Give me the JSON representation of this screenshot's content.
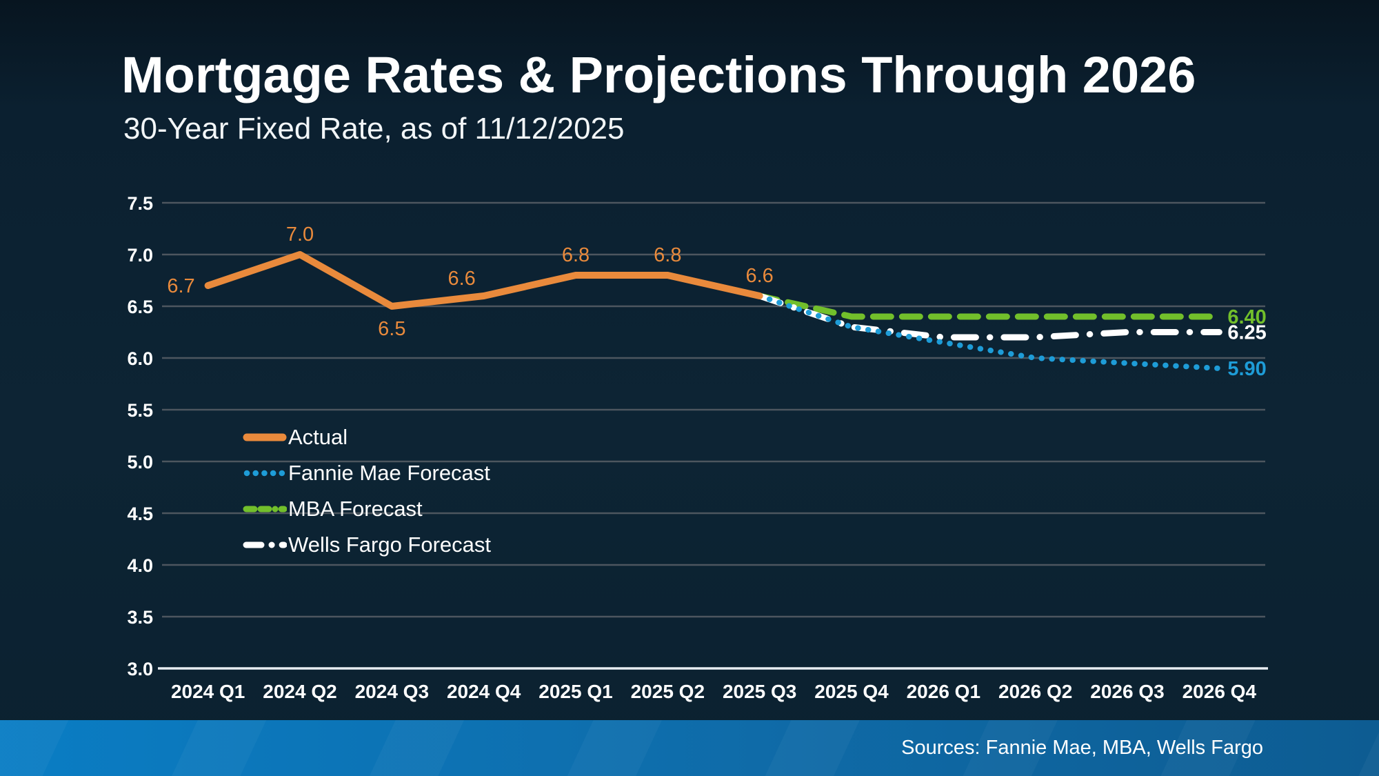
{
  "header": {
    "title": "Mortgage Rates & Projections Through 2026",
    "subtitle": "30-Year Fixed Rate, as of 11/12/2025"
  },
  "footer": {
    "sources": "Sources: Fannie Mae, MBA, Wells Fargo"
  },
  "colors": {
    "background": "#0C2334",
    "actual": "#E98A3C",
    "fannie": "#1E9CD7",
    "mba": "#72BF2B",
    "wells": "#FFFFFF",
    "gridline": "#4D565F",
    "axis": "#E8EDF1",
    "label_text": "#FFFFFF",
    "footer_bar_left": "#0A7DC4",
    "footer_bar_right": "#0D5C92"
  },
  "legend": {
    "items": [
      {
        "label": "Actual"
      },
      {
        "label": "Fannie Mae Forecast"
      },
      {
        "label": "MBA Forecast"
      },
      {
        "label": "Wells Fargo Forecast"
      }
    ]
  },
  "chart_data": {
    "type": "line",
    "title": "Mortgage Rates & Projections Through 2026",
    "subtitle": "30-Year Fixed Rate, as of 11/12/2025",
    "xlabel": "",
    "ylabel": "",
    "ylim": [
      3.0,
      7.5
    ],
    "ytick_step": 0.5,
    "grid": true,
    "legend_position": "middle-left",
    "categories": [
      "2024 Q1",
      "2024 Q2",
      "2024 Q3",
      "2024 Q4",
      "2025 Q1",
      "2025 Q2",
      "2025 Q3",
      "2025 Q4",
      "2026 Q1",
      "2026 Q2",
      "2026 Q3",
      "2026 Q4"
    ],
    "series": [
      {
        "name": "MBA Forecast",
        "color": "#72BF2B",
        "style": "dashed",
        "width": 9,
        "start_index": 6,
        "values": [
          6.6,
          6.4,
          6.4,
          6.4,
          6.4,
          6.4
        ]
      },
      {
        "name": "Wells Fargo Forecast",
        "color": "#FFFFFF",
        "style": "dashdot",
        "width": 9,
        "start_index": 6,
        "values": [
          6.6,
          6.3,
          6.2,
          6.2,
          6.25,
          6.25
        ]
      },
      {
        "name": "Fannie Mae Forecast",
        "color": "#1E9CD7",
        "style": "dotted",
        "width": 8,
        "start_index": 6,
        "values": [
          6.6,
          6.3,
          6.15,
          6.0,
          5.95,
          5.9
        ]
      },
      {
        "name": "Actual",
        "color": "#E98A3C",
        "style": "solid",
        "width": 10,
        "start_index": 0,
        "values": [
          6.7,
          7.0,
          6.5,
          6.6,
          6.8,
          6.8,
          6.6
        ]
      }
    ],
    "point_labels": [
      {
        "text": "6.7",
        "index": 0,
        "pos": "left"
      },
      {
        "text": "7.0",
        "index": 1,
        "pos": "above"
      },
      {
        "text": "6.5",
        "index": 2,
        "pos": "below"
      },
      {
        "text": "6.6",
        "index": 3,
        "pos": "above-left"
      },
      {
        "text": "6.8",
        "index": 4,
        "pos": "above"
      },
      {
        "text": "6.8",
        "index": 5,
        "pos": "above"
      },
      {
        "text": "6.6",
        "index": 6,
        "pos": "above"
      }
    ],
    "end_labels": [
      {
        "text": "6.40",
        "value": 6.4,
        "color": "#72BF2B"
      },
      {
        "text": "6.25",
        "value": 6.25,
        "color": "#FFFFFF"
      },
      {
        "text": "5.90",
        "value": 5.9,
        "color": "#1E9CD7"
      }
    ]
  }
}
